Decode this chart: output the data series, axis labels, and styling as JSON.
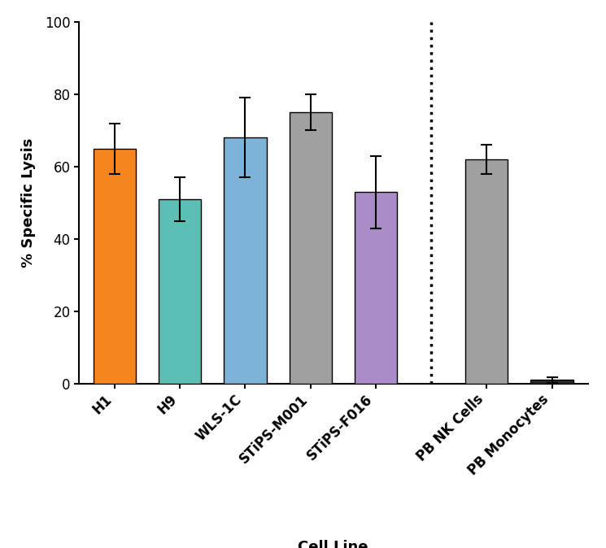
{
  "categories": [
    "H1",
    "H9",
    "WLS-1C",
    "STiPS-M001",
    "STiPS-F016",
    "PB NK Cells",
    "PB Monocytes"
  ],
  "values": [
    65,
    51,
    68,
    75,
    53,
    62,
    1
  ],
  "errors": [
    7,
    6,
    11,
    5,
    10,
    4,
    0.8
  ],
  "bar_colors": [
    "#F5851F",
    "#5BBFB5",
    "#7EB3D8",
    "#A0A0A0",
    "#A98CC8",
    "#A0A0A0",
    "#2A2A2A"
  ],
  "ylabel": "% Specific Lysis",
  "xlabel": "Cell Line",
  "ylim": [
    0,
    100
  ],
  "yticks": [
    0,
    20,
    40,
    60,
    80,
    100
  ],
  "background_color": "#ffffff",
  "bar_width": 0.65,
  "figsize": [
    7.45,
    6.74
  ],
  "dpi": 100
}
